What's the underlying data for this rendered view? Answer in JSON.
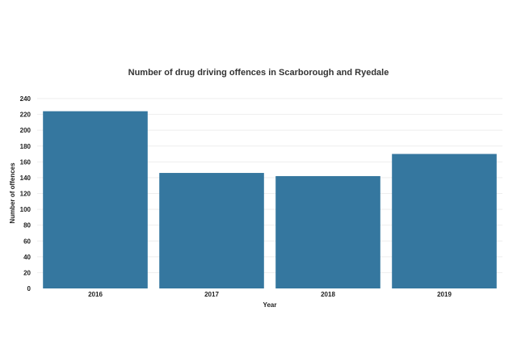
{
  "chart_data": {
    "type": "bar",
    "title": "Number of drug driving offences in Scarborough and Ryedale",
    "xlabel": "Year",
    "ylabel": "Number of offences",
    "categories": [
      "2016",
      "2017",
      "2018",
      "2019"
    ],
    "values": [
      224,
      146,
      142,
      170
    ],
    "ylim": [
      0,
      240
    ],
    "yticks": [
      0,
      20,
      40,
      60,
      80,
      100,
      120,
      140,
      160,
      180,
      200,
      220,
      240
    ],
    "grid": true,
    "legend": "none",
    "bar_color": "#35779f"
  }
}
